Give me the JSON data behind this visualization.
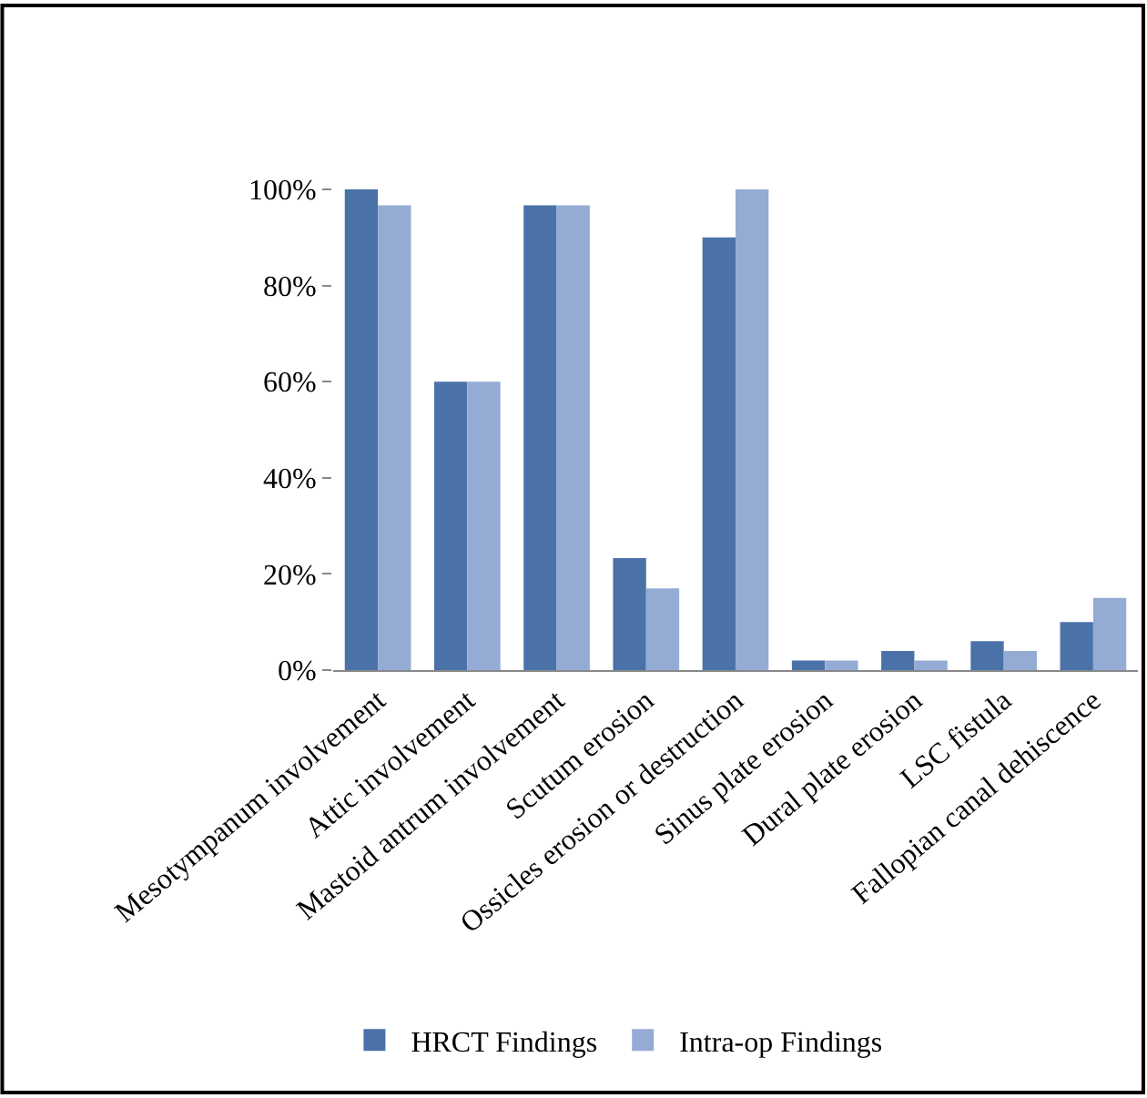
{
  "chart_data": {
    "type": "bar",
    "categories": [
      "Mesotympanum involvement",
      "Attic involvement",
      "Mastoid antrum involvement",
      "Scutum erosion",
      "Ossicles erosion or destruction",
      "Sinus plate erosion",
      "Dural plate erosion",
      "LSC fistula",
      "Fallopian canal dehiscence"
    ],
    "series": [
      {
        "name": "HRCT Findings",
        "color": "#4a72a8",
        "values": [
          100,
          60,
          96.7,
          23.3,
          90,
          2,
          4,
          6,
          10
        ]
      },
      {
        "name": "Intra-op Findings",
        "color": "#94acd4",
        "values": [
          96.7,
          60,
          96.7,
          17,
          100,
          2,
          2,
          4,
          15
        ]
      }
    ],
    "ylim": [
      0,
      100
    ],
    "yticks": [
      {
        "value": 0,
        "label": "0%"
      },
      {
        "value": 20,
        "label": "20%"
      },
      {
        "value": 40,
        "label": "40%"
      },
      {
        "value": 60,
        "label": "60%"
      },
      {
        "value": 80,
        "label": "80%"
      },
      {
        "value": 100,
        "label": "100%"
      }
    ],
    "grid": false,
    "legend": "bottom"
  }
}
